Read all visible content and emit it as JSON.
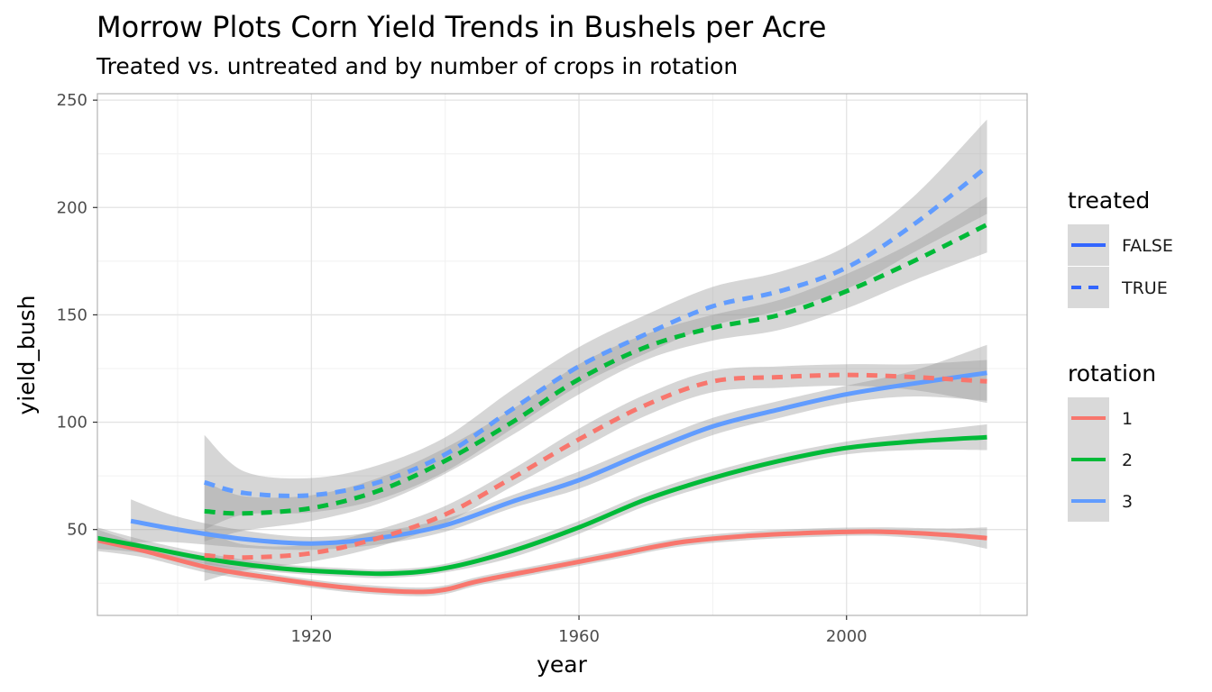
{
  "chart_data": {
    "type": "line",
    "title": "Morrow Plots Corn Yield Trends in Bushels per Acre",
    "subtitle": "Treated vs. untreated and by number of crops in rotation",
    "xlabel": "year",
    "ylabel": "yield_bush",
    "xlim": [
      1888,
      2027
    ],
    "ylim": [
      10,
      253
    ],
    "x_ticks": [
      1920,
      1960,
      2000
    ],
    "y_ticks": [
      50,
      100,
      150,
      200,
      250
    ],
    "x_tick_labels": [
      "1920",
      "1960",
      "2000"
    ],
    "y_tick_labels": [
      "50",
      "100",
      "150",
      "200",
      "250"
    ],
    "grid": true,
    "legend_position": "right",
    "legends": [
      {
        "title": "treated",
        "aesthetic": "linetype",
        "entries": [
          {
            "label": "FALSE",
            "dash": "solid"
          },
          {
            "label": "TRUE",
            "dash": "dashed"
          }
        ]
      },
      {
        "title": "rotation",
        "aesthetic": "color",
        "entries": [
          {
            "label": "1",
            "color": "#F8766D"
          },
          {
            "label": "2",
            "color": "#00BA38"
          },
          {
            "label": "3",
            "color": "#619CFF"
          }
        ]
      }
    ],
    "series": [
      {
        "rotation": "1",
        "treated": "FALSE",
        "color": "#F8766D",
        "dash": "solid",
        "x": [
          1888,
          1895,
          1905,
          1915,
          1925,
          1935,
          1940,
          1945,
          1955,
          1965,
          1975,
          1985,
          1995,
          2005,
          2015,
          2021
        ],
        "y": [
          45,
          40,
          32,
          27,
          23,
          21,
          22,
          26,
          32,
          38,
          44,
          47,
          48.5,
          49,
          47.5,
          46
        ],
        "band": [
          5,
          3,
          2.5,
          2,
          2,
          2,
          2,
          2,
          2,
          2,
          2,
          2,
          2,
          2,
          3,
          5
        ]
      },
      {
        "rotation": "2",
        "treated": "FALSE",
        "color": "#00BA38",
        "dash": "solid",
        "x": [
          1888,
          1895,
          1905,
          1915,
          1925,
          1932,
          1940,
          1950,
          1960,
          1970,
          1980,
          1990,
          2000,
          2010,
          2021
        ],
        "y": [
          46,
          42,
          36,
          32,
          30,
          29.5,
          32,
          40,
          51,
          64,
          74,
          82,
          88,
          91,
          93
        ],
        "band": [
          5,
          3,
          2.5,
          2,
          2,
          2,
          2,
          3,
          3,
          3,
          3,
          3,
          3,
          4,
          6
        ]
      },
      {
        "rotation": "3",
        "treated": "FALSE",
        "color": "#619CFF",
        "dash": "solid",
        "x": [
          1893,
          1900,
          1910,
          1920,
          1930,
          1940,
          1950,
          1960,
          1970,
          1980,
          1990,
          2000,
          2010,
          2021
        ],
        "y": [
          54,
          50,
          45.5,
          43.5,
          46,
          52,
          63,
          73,
          86,
          98,
          106,
          113,
          118,
          123
        ],
        "band": [
          10,
          6,
          4,
          3,
          3,
          3,
          3,
          4,
          4,
          4,
          4,
          4,
          6,
          13
        ]
      },
      {
        "rotation": "1",
        "treated": "TRUE",
        "color": "#F8766D",
        "dash": "dashed",
        "x": [
          1904,
          1910,
          1920,
          1930,
          1940,
          1950,
          1960,
          1970,
          1980,
          1990,
          2000,
          2010,
          2021
        ],
        "y": [
          38,
          37,
          39,
          46,
          57,
          74,
          92,
          108,
          119,
          121,
          122,
          121,
          119
        ],
        "band": [
          12,
          6,
          4,
          4,
          4,
          4,
          5,
          5,
          5,
          5,
          5,
          6,
          10
        ]
      },
      {
        "rotation": "2",
        "treated": "TRUE",
        "color": "#00BA38",
        "dash": "dashed",
        "x": [
          1904,
          1910,
          1920,
          1930,
          1940,
          1950,
          1960,
          1970,
          1980,
          1990,
          2000,
          2010,
          2021
        ],
        "y": [
          58.5,
          57.5,
          60,
          68,
          82,
          100,
          120,
          135,
          144,
          150,
          161,
          175,
          192
        ],
        "band": [
          14,
          8,
          6,
          6,
          6,
          6,
          7,
          6,
          6,
          7,
          8,
          9,
          13
        ]
      },
      {
        "rotation": "3",
        "treated": "TRUE",
        "color": "#619CFF",
        "dash": "dashed",
        "x": [
          1904,
          1910,
          1920,
          1930,
          1940,
          1950,
          1960,
          1970,
          1980,
          1990,
          2000,
          2010,
          2021
        ],
        "y": [
          72,
          67,
          66,
          72,
          85,
          106,
          126,
          141,
          154,
          161,
          172,
          192,
          219
        ],
        "band": [
          22,
          10,
          8,
          8,
          8,
          9,
          9,
          9,
          9,
          9,
          10,
          13,
          22
        ]
      }
    ]
  }
}
